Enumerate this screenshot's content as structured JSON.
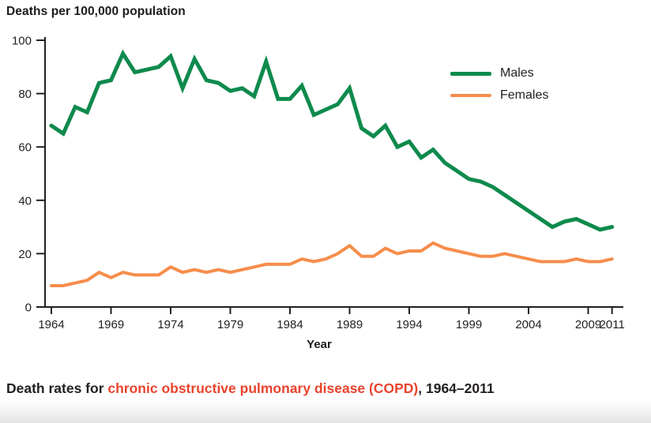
{
  "title": "Deaths per 100,000 population",
  "xlabel": "Year",
  "legend": {
    "males": "Males",
    "females": "Females"
  },
  "caption": {
    "prefix": "Death rates for ",
    "highlight": "chronic obstructive pulmonary disease (COPD)",
    "suffix": ", 1964–2011"
  },
  "colors": {
    "males_line": "#0f8a4d",
    "females_line": "#f68d4b",
    "caption_highlight": "#e8432e",
    "axis": "#231f20"
  },
  "chart_data": {
    "type": "line",
    "title": "Deaths per 100,000 population",
    "xlabel": "Year",
    "ylabel": "Deaths per 100,000 population",
    "grid": false,
    "legend_position": "top-right",
    "ylim": [
      0,
      100
    ],
    "xlim": [
      1964,
      2011
    ],
    "y_ticks": [
      0,
      20,
      40,
      60,
      80,
      100
    ],
    "x_ticks": [
      1964,
      1969,
      1974,
      1979,
      1984,
      1989,
      1994,
      1999,
      2004,
      2009,
      2011
    ],
    "x": [
      1964,
      1965,
      1966,
      1967,
      1968,
      1969,
      1970,
      1971,
      1972,
      1973,
      1974,
      1975,
      1976,
      1977,
      1978,
      1979,
      1980,
      1981,
      1982,
      1983,
      1984,
      1985,
      1986,
      1987,
      1988,
      1989,
      1990,
      1991,
      1992,
      1993,
      1994,
      1995,
      1996,
      1997,
      1998,
      1999,
      2000,
      2001,
      2002,
      2003,
      2004,
      2005,
      2006,
      2007,
      2008,
      2009,
      2010,
      2011
    ],
    "series": [
      {
        "name": "Males",
        "color": "#0f8a4d",
        "values": [
          68,
          65,
          75,
          73,
          84,
          85,
          95,
          88,
          89,
          90,
          94,
          82,
          93,
          85,
          84,
          81,
          82,
          79,
          92,
          78,
          78,
          83,
          72,
          74,
          76,
          82,
          67,
          64,
          68,
          60,
          62,
          56,
          59,
          54,
          51,
          48,
          47,
          45,
          42,
          39,
          36,
          33,
          30,
          32,
          33,
          31,
          29,
          30
        ]
      },
      {
        "name": "Females",
        "color": "#f68d4b",
        "values": [
          8,
          8,
          9,
          10,
          13,
          11,
          13,
          12,
          12,
          12,
          15,
          13,
          14,
          13,
          14,
          13,
          14,
          15,
          16,
          16,
          16,
          18,
          17,
          18,
          20,
          23,
          19,
          19,
          22,
          20,
          21,
          21,
          24,
          22,
          21,
          20,
          19,
          19,
          20,
          19,
          18,
          17,
          17,
          17,
          18,
          17,
          17,
          18
        ]
      }
    ]
  }
}
